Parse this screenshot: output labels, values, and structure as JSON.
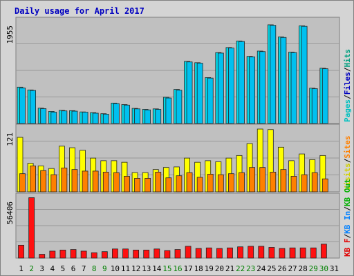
{
  "chart_data": {
    "type": "bar",
    "title": "Daily usage for April 2017",
    "days": [
      "1",
      "2",
      "3",
      "4",
      "5",
      "6",
      "7",
      "8",
      "9",
      "10",
      "11",
      "12",
      "13",
      "14",
      "15",
      "16",
      "17",
      "18",
      "19",
      "20",
      "21",
      "22",
      "23",
      "24",
      "25",
      "26",
      "27",
      "28",
      "29",
      "30",
      "31"
    ],
    "weekend_days": [
      "2",
      "8",
      "9",
      "15",
      "16",
      "22",
      "23",
      "29",
      "30"
    ],
    "panels": [
      {
        "id": "top",
        "ymax_label": "1955",
        "ylim": [
          0,
          2050
        ],
        "legend": [
          {
            "label": "Pages",
            "color": "#00c0c0"
          },
          {
            "label": "/",
            "color": "#000000"
          },
          {
            "label": "Files",
            "color": "#0000c0"
          },
          {
            "label": "/",
            "color": "#000000"
          },
          {
            "label": "Hits",
            "color": "#00a080"
          }
        ],
        "series": [
          {
            "color": "#00d8e8",
            "values": [
              720,
              665,
              305,
              240,
              260,
              255,
              230,
              215,
              195,
              405,
              375,
              300,
              280,
              290,
              520,
              675,
              1230,
              1205,
              910,
              1405,
              1505,
              1635,
              1330,
              1435,
              1955,
              1715,
              1415,
              1935,
              700,
              1095,
              0
            ]
          },
          {
            "color": "#00c0f0",
            "values": [
              705,
              655,
              295,
              225,
              250,
              245,
              225,
              205,
              185,
              395,
              365,
              290,
              270,
              280,
              505,
              660,
              1220,
              1195,
              900,
              1395,
              1495,
              1625,
              1320,
              1425,
              1945,
              1705,
              1405,
              1925,
              690,
              1085,
              0
            ]
          }
        ]
      },
      {
        "id": "mid",
        "ymax_label": "121",
        "ylim": [
          0,
          125
        ],
        "legend": [
          {
            "label": "Visits",
            "color": "#d0d000"
          },
          {
            "label": "/",
            "color": "#000000"
          },
          {
            "label": "Sites",
            "color": "#ff8000"
          }
        ],
        "series": [
          {
            "color": "#ffff00",
            "values": [
              105,
              55,
              50,
              45,
              88,
              85,
              80,
              65,
              60,
              60,
              57,
              37,
              37,
              43,
              47,
              48,
              65,
              57,
              60,
              58,
              65,
              70,
              93,
              121,
              120,
              86,
              60,
              73,
              62,
              70,
              0
            ]
          },
          {
            "color": "#ff8000",
            "values": [
              35,
              50,
              41,
              33,
              46,
              43,
              40,
              40,
              38,
              37,
              30,
              26,
              26,
              38,
              27,
              31,
              37,
              28,
              34,
              33,
              35,
              37,
              47,
              47,
              38,
              43,
              30,
              33,
              37,
              25,
              0
            ]
          }
        ]
      },
      {
        "id": "bottom",
        "ymax_label": "56406",
        "ylim": [
          0,
          58000
        ],
        "legend": [
          {
            "label": "KB F",
            "color": "#e00000"
          },
          {
            "label": "/",
            "color": "#000000"
          },
          {
            "label": "KB In",
            "color": "#0080ff"
          },
          {
            "label": "/",
            "color": "#000000"
          },
          {
            "label": "KB Out",
            "color": "#00b000"
          }
        ],
        "series": [
          {
            "color": "#ff1010",
            "values": [
              12000,
              56406,
              3500,
              6500,
              7500,
              8000,
              6500,
              5000,
              6000,
              8500,
              8500,
              7500,
              7500,
              8500,
              7000,
              8000,
              11000,
              9000,
              9500,
              9000,
              9500,
              10500,
              11000,
              11000,
              10000,
              9000,
              9500,
              9500,
              9500,
              13000,
              0
            ]
          }
        ]
      }
    ]
  }
}
